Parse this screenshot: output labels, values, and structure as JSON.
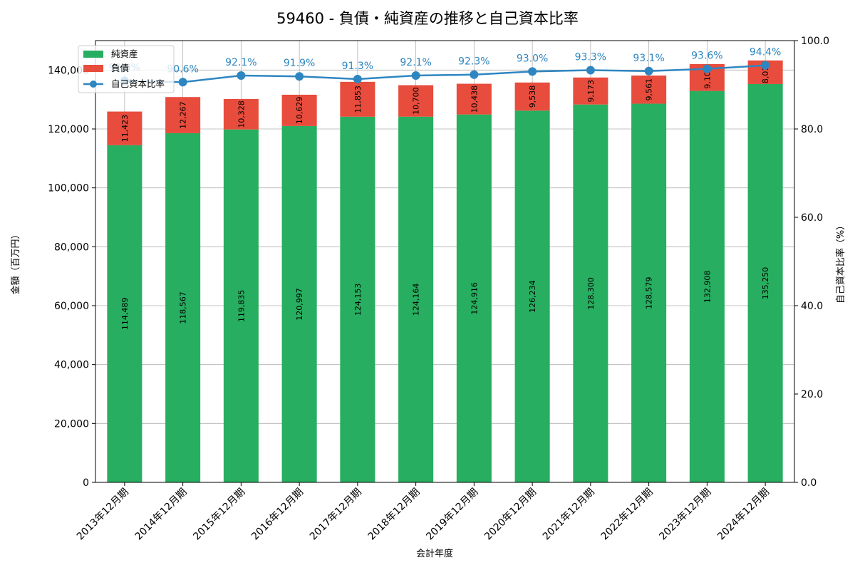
{
  "chart_data": {
    "type": "bar",
    "stacked": true,
    "title": "59460 - 負債・純資産の推移と自己資本比率",
    "xlabel": "会計年度",
    "ylabel": "金額（百万円）",
    "y2label": "自己資本比率（%）",
    "ylim": [
      0,
      150000
    ],
    "y2lim": [
      0,
      100
    ],
    "yticks": [
      0,
      20000,
      40000,
      60000,
      80000,
      100000,
      120000,
      140000
    ],
    "y2ticks": [
      0,
      20,
      40,
      60,
      80,
      100
    ],
    "grid": true,
    "legend_position": "top-left",
    "categories": [
      "2013年12月期",
      "2014年12月期",
      "2015年12月期",
      "2016年12月期",
      "2017年12月期",
      "2018年12月期",
      "2019年12月期",
      "2020年12月期",
      "2021年12月期",
      "2022年12月期",
      "2023年12月期",
      "2024年12月期"
    ],
    "series": [
      {
        "name": "純資産",
        "kind": "bar",
        "color": "#27ae60",
        "values": [
          114489,
          118567,
          119835,
          120997,
          124153,
          124164,
          124916,
          126234,
          128300,
          128579,
          132908,
          135250
        ]
      },
      {
        "name": "負債",
        "kind": "bar",
        "color": "#e74c3c",
        "values": [
          11423,
          12267,
          10328,
          10629,
          11853,
          10700,
          10438,
          9538,
          9173,
          9561,
          9107,
          8017
        ]
      },
      {
        "name": "自己資本比率",
        "kind": "line",
        "axis": "right",
        "color": "#2e86c1",
        "values": [
          90.9,
          90.6,
          92.1,
          91.9,
          91.3,
          92.1,
          92.3,
          93.0,
          93.3,
          93.1,
          93.6,
          94.4
        ]
      }
    ]
  }
}
